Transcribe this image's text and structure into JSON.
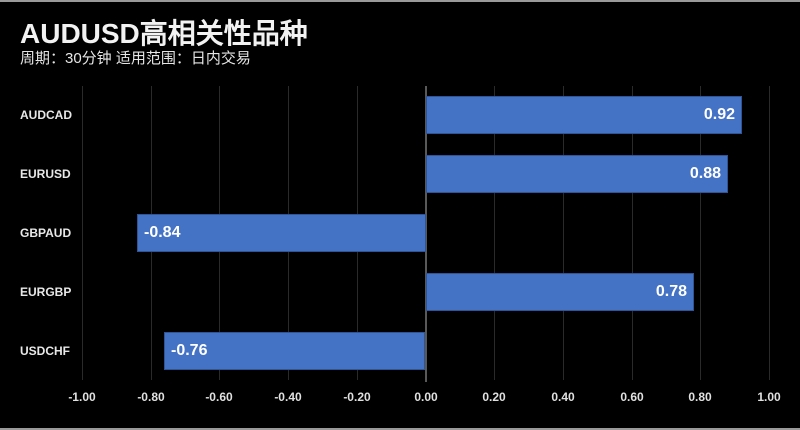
{
  "header": {
    "title": "AUDUSD高相关性品种",
    "subtitle": "周期：30分钟  适用范围：日内交易"
  },
  "colors": {
    "background": "#000000",
    "bar": "#4472c4",
    "gridline": "#2a2a2a",
    "text": "#ffffff"
  },
  "chart_data": {
    "type": "bar",
    "orientation": "horizontal",
    "title": "AUDUSD高相关性品种",
    "subtitle": "周期：30分钟  适用范围：日内交易",
    "categories": [
      "AUDCAD",
      "EURUSD",
      "GBPAUD",
      "EURGBP",
      "USDCHF"
    ],
    "values": [
      0.92,
      0.88,
      -0.84,
      0.78,
      -0.76
    ],
    "value_labels": [
      "0.92",
      "0.88",
      "-0.84",
      "0.78",
      "-0.76"
    ],
    "xlabel": "",
    "ylabel": "",
    "xlim": [
      -1.0,
      1.0
    ],
    "xticks": [
      "-1.00",
      "-0.80",
      "-0.60",
      "-0.40",
      "-0.20",
      "0.00",
      "0.20",
      "0.40",
      "0.60",
      "0.80",
      "1.00"
    ],
    "grid": true,
    "legend": null
  }
}
